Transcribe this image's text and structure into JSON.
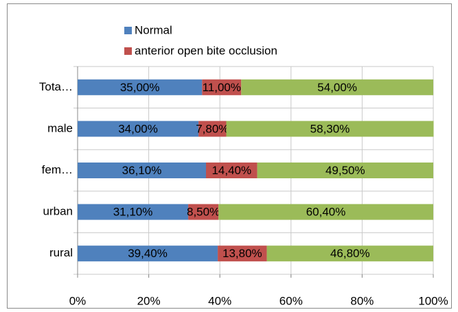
{
  "chart_data": {
    "type": "stacked-bar-horizontal",
    "categories": [
      "Tota…",
      "male",
      "fem…",
      "urban",
      "rural"
    ],
    "series": [
      {
        "name": "Normal",
        "color": "#4f81bd",
        "values": [
          35,
          34,
          36.1,
          31.1,
          39.4
        ],
        "value_labels": [
          "35,00%",
          "34,00%",
          "36,10%",
          "31,10%",
          "39,40%"
        ]
      },
      {
        "name": "anterior open bite occlusion",
        "color": "#c0504d",
        "values": [
          11,
          7.8,
          14.4,
          8.5,
          13.8
        ],
        "value_labels": [
          "11,00%",
          "7,80%",
          "14,40%",
          "8,50%",
          "13,80%"
        ]
      },
      {
        "color": "#9bbb59",
        "values": [
          54,
          58.3,
          49.5,
          60.4,
          46.8
        ],
        "value_labels": [
          "54,00%",
          "58,30%",
          "49,50%",
          "60,40%",
          "46,80%"
        ]
      }
    ],
    "xlim": [
      0,
      100
    ],
    "xticks": [
      {
        "value": 0,
        "label": "0%"
      },
      {
        "value": 20,
        "label": "20%"
      },
      {
        "value": 40,
        "label": "40%"
      },
      {
        "value": 60,
        "label": "60%"
      },
      {
        "value": 80,
        "label": "80%"
      },
      {
        "value": 100,
        "label": "100%"
      }
    ],
    "grid": true,
    "legend": "top"
  }
}
